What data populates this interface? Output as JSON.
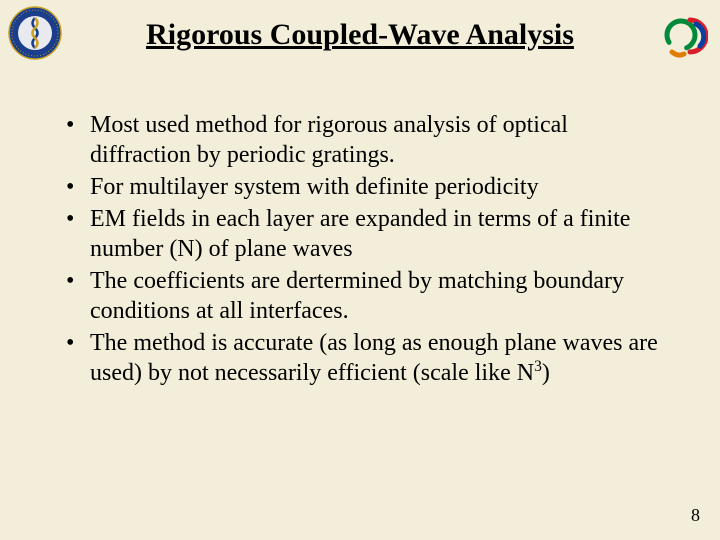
{
  "title": "Rigorous Coupled-Wave Analysis",
  "bullets": [
    "Most used method for rigorous analysis of optical diffraction by periodic gratings.",
    "For multilayer system with definite periodicity",
    "EM fields in each layer are expanded in terms of a finite number (N) of plane waves",
    "The coefficients are dertermined by matching boundary conditions at all interfaces.",
    "The method is accurate (as long as enough plane waves are used) by not necessarily efficient (scale like N__SUP3__)"
  ],
  "page_number": "8",
  "logo_left": {
    "outer_ring_fill": "#1a3e8c",
    "outer_ring_stroke": "#c9a227",
    "inner_fill": "#e9e9f0",
    "accent": "#c9a227"
  },
  "logo_right": {
    "colors": [
      "#008a3a",
      "#d81e2a",
      "#0a3fa0",
      "#e07c00"
    ]
  },
  "bullet_char": "•",
  "background_color": "#f2eed9",
  "text_color": "#000000",
  "title_fontsize": 30,
  "body_fontsize": 24
}
